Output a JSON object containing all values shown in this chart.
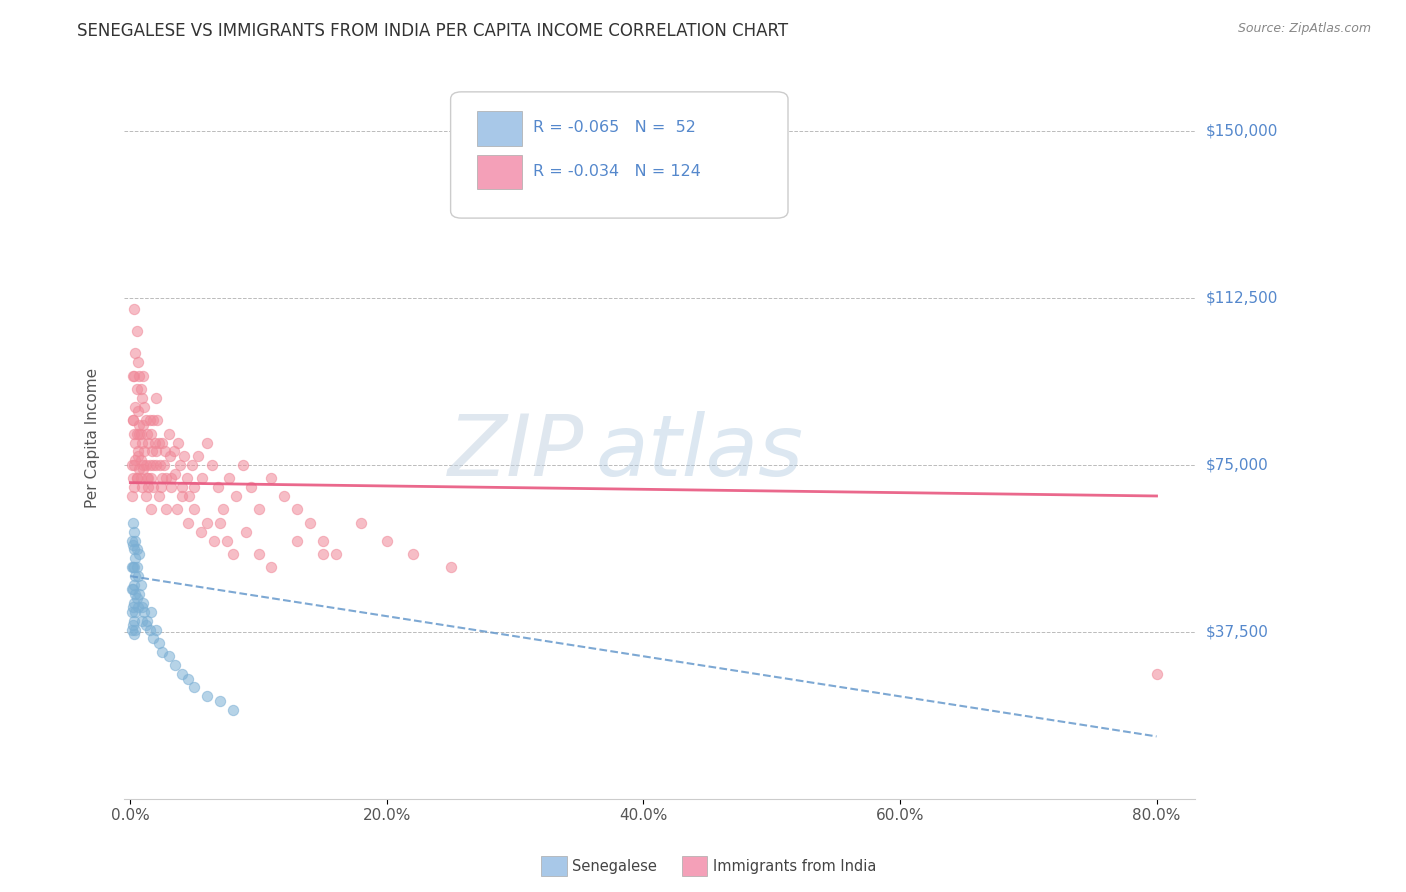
{
  "title": "SENEGALESE VS IMMIGRANTS FROM INDIA PER CAPITA INCOME CORRELATION CHART",
  "source": "Source: ZipAtlas.com",
  "ylabel": "Per Capita Income",
  "xlabel_ticks": [
    "0.0%",
    "20.0%",
    "40.0%",
    "60.0%",
    "80.0%"
  ],
  "xlabel_vals": [
    0.0,
    0.2,
    0.4,
    0.6,
    0.8
  ],
  "ytick_vals": [
    0,
    37500,
    75000,
    112500,
    150000
  ],
  "ytick_labels": [
    "",
    "$37,500",
    "$75,000",
    "$112,500",
    "$150,000"
  ],
  "ylim": [
    0,
    162000
  ],
  "xlim": [
    -0.005,
    0.83
  ],
  "blue_R": -0.065,
  "blue_N": 52,
  "pink_R": -0.034,
  "pink_N": 124,
  "blue_legend_color": "#A8C8E8",
  "pink_legend_color": "#F4A0B8",
  "blue_scatter_color": "#7BAFD4",
  "pink_scatter_color": "#F08898",
  "trend_blue_color": "#6699CC",
  "trend_pink_color": "#E85880",
  "watermark_zip_color": "#C8D8E8",
  "watermark_atlas_color": "#A8C8E0",
  "legend_label_blue": "Senegalese",
  "legend_label_pink": "Immigrants from India",
  "blue_trend_x0": 0.0,
  "blue_trend_x1": 0.8,
  "blue_trend_y0": 50000,
  "blue_trend_y1": 14000,
  "pink_trend_x0": 0.0,
  "pink_trend_x1": 0.8,
  "pink_trend_y0": 71000,
  "pink_trend_y1": 68000,
  "blue_x": [
    0.001,
    0.001,
    0.001,
    0.001,
    0.001,
    0.002,
    0.002,
    0.002,
    0.002,
    0.002,
    0.002,
    0.003,
    0.003,
    0.003,
    0.003,
    0.003,
    0.003,
    0.003,
    0.004,
    0.004,
    0.004,
    0.004,
    0.004,
    0.004,
    0.005,
    0.005,
    0.005,
    0.006,
    0.006,
    0.007,
    0.007,
    0.008,
    0.009,
    0.009,
    0.01,
    0.011,
    0.012,
    0.013,
    0.015,
    0.016,
    0.018,
    0.02,
    0.022,
    0.025,
    0.03,
    0.035,
    0.04,
    0.045,
    0.05,
    0.06,
    0.07,
    0.08
  ],
  "blue_y": [
    58000,
    52000,
    47000,
    42000,
    38000,
    62000,
    57000,
    52000,
    47000,
    43000,
    39000,
    60000,
    56000,
    52000,
    48000,
    44000,
    40000,
    37000,
    58000,
    54000,
    50000,
    46000,
    42000,
    38000,
    56000,
    52000,
    45000,
    50000,
    43000,
    55000,
    46000,
    48000,
    43000,
    40000,
    44000,
    42000,
    39000,
    40000,
    38000,
    42000,
    36000,
    38000,
    35000,
    33000,
    32000,
    30000,
    28000,
    27000,
    25000,
    23000,
    22000,
    20000
  ],
  "pink_x": [
    0.001,
    0.001,
    0.002,
    0.002,
    0.002,
    0.003,
    0.003,
    0.003,
    0.003,
    0.004,
    0.004,
    0.004,
    0.005,
    0.005,
    0.005,
    0.005,
    0.006,
    0.006,
    0.006,
    0.007,
    0.007,
    0.007,
    0.008,
    0.008,
    0.008,
    0.009,
    0.009,
    0.01,
    0.01,
    0.01,
    0.011,
    0.011,
    0.012,
    0.012,
    0.013,
    0.013,
    0.014,
    0.014,
    0.015,
    0.015,
    0.016,
    0.016,
    0.017,
    0.018,
    0.018,
    0.019,
    0.02,
    0.02,
    0.021,
    0.022,
    0.023,
    0.024,
    0.025,
    0.026,
    0.027,
    0.028,
    0.03,
    0.031,
    0.032,
    0.034,
    0.035,
    0.037,
    0.039,
    0.04,
    0.042,
    0.044,
    0.046,
    0.048,
    0.05,
    0.053,
    0.056,
    0.06,
    0.064,
    0.068,
    0.072,
    0.077,
    0.082,
    0.088,
    0.094,
    0.1,
    0.11,
    0.12,
    0.13,
    0.14,
    0.15,
    0.16,
    0.18,
    0.2,
    0.22,
    0.25,
    0.002,
    0.003,
    0.004,
    0.005,
    0.006,
    0.007,
    0.008,
    0.009,
    0.01,
    0.012,
    0.014,
    0.016,
    0.018,
    0.02,
    0.022,
    0.025,
    0.028,
    0.032,
    0.036,
    0.04,
    0.045,
    0.05,
    0.055,
    0.06,
    0.065,
    0.07,
    0.075,
    0.08,
    0.09,
    0.1,
    0.11,
    0.13,
    0.15,
    0.8
  ],
  "pink_y": [
    75000,
    68000,
    95000,
    85000,
    72000,
    110000,
    95000,
    82000,
    70000,
    100000,
    88000,
    76000,
    105000,
    92000,
    82000,
    72000,
    98000,
    87000,
    77000,
    95000,
    84000,
    74000,
    92000,
    82000,
    72000,
    90000,
    80000,
    95000,
    84000,
    74000,
    88000,
    78000,
    85000,
    75000,
    82000,
    72000,
    80000,
    70000,
    85000,
    75000,
    82000,
    72000,
    78000,
    85000,
    75000,
    80000,
    90000,
    78000,
    85000,
    80000,
    75000,
    70000,
    80000,
    75000,
    78000,
    72000,
    82000,
    77000,
    72000,
    78000,
    73000,
    80000,
    75000,
    70000,
    77000,
    72000,
    68000,
    75000,
    70000,
    77000,
    72000,
    80000,
    75000,
    70000,
    65000,
    72000,
    68000,
    75000,
    70000,
    65000,
    72000,
    68000,
    65000,
    62000,
    58000,
    55000,
    62000,
    58000,
    55000,
    52000,
    85000,
    75000,
    80000,
    72000,
    78000,
    82000,
    76000,
    70000,
    75000,
    68000,
    72000,
    65000,
    70000,
    75000,
    68000,
    72000,
    65000,
    70000,
    65000,
    68000,
    62000,
    65000,
    60000,
    62000,
    58000,
    62000,
    58000,
    55000,
    60000,
    55000,
    52000,
    58000,
    55000,
    28000
  ]
}
